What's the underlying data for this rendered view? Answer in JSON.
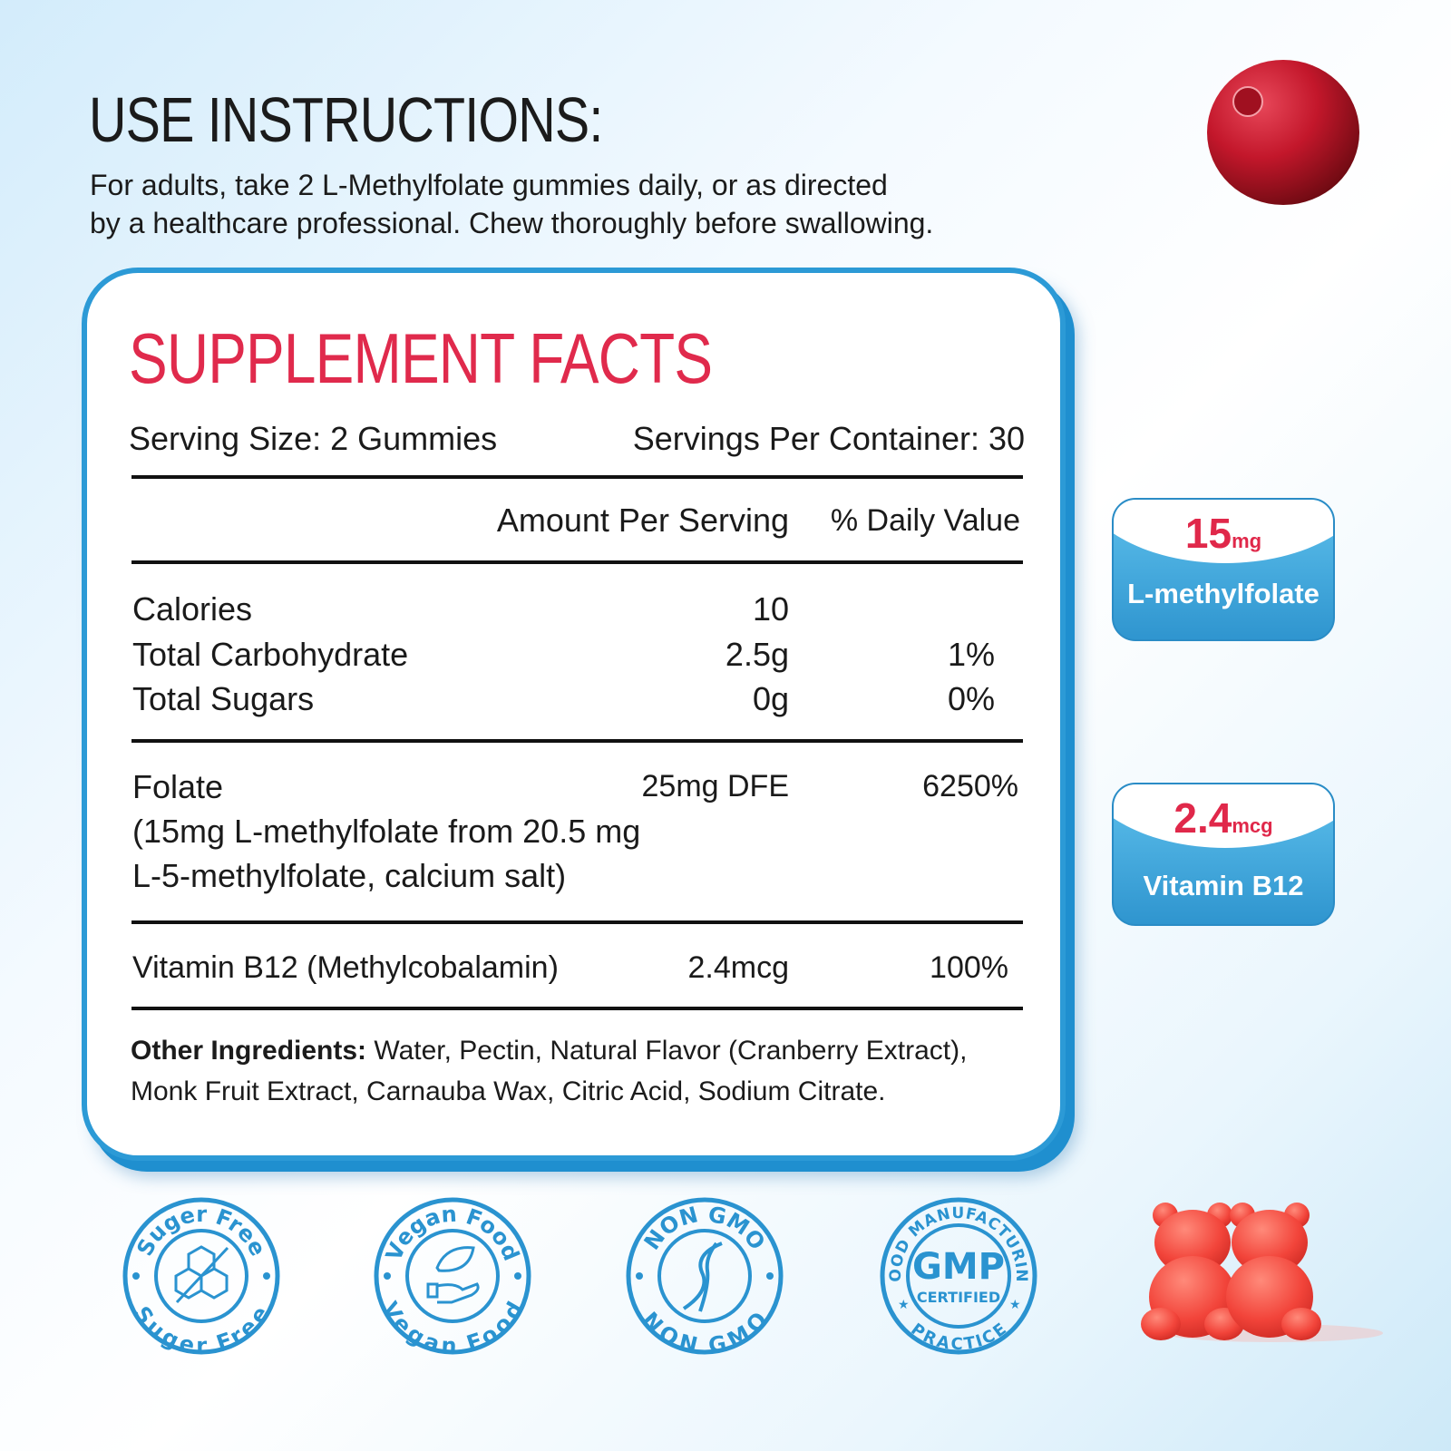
{
  "instructions": {
    "title": "USE INSTRUCTIONS:",
    "line1": "For adults, take 2 L-Methylfolate gummies daily, or as directed",
    "line2": "by a healthcare professional. Chew thoroughly before swallowing."
  },
  "facts": {
    "title": "SUPPLEMENT FACTS",
    "serving_size": "Serving Size:  2 Gummies",
    "servings_per_container": "Servings Per Container: 30",
    "header_amount": "Amount Per Serving",
    "header_dv": "% Daily Value",
    "rows": [
      {
        "name": "Calories",
        "amount": "10",
        "dv": ""
      },
      {
        "name": "Total Carbohydrate",
        "amount": "2.5g",
        "dv": "1%"
      },
      {
        "name": "Total Sugars",
        "amount": "0g",
        "dv": "0%"
      }
    ],
    "folate": {
      "name": "Folate",
      "detail1": "(15mg L-methylfolate from 20.5 mg",
      "detail2": "L-5-methylfolate, calcium salt)",
      "amount": "25mg DFE",
      "dv": "6250%"
    },
    "b12": {
      "name": "Vitamin B12 (Methylcobalamin)",
      "amount": "2.4mcg",
      "dv": "100%"
    },
    "other_label": "Other Ingredients:",
    "other_text1": " Water, Pectin, Natural Flavor (Cranberry Extract),",
    "other_text2": "Monk Fruit Extract, Carnauba Wax, Citric Acid, Sodium Citrate."
  },
  "badges": [
    {
      "value": "15",
      "unit": "mg",
      "label": "L-methylfolate"
    },
    {
      "value": "2.4",
      "unit": "mcg",
      "label": "Vitamin B12"
    }
  ],
  "seals": [
    {
      "top": "Suger Free",
      "bottom": "Suger Free",
      "icon": "sugar-cubes-crossed-icon"
    },
    {
      "top": "Vegan Food",
      "bottom": "Vegan Food",
      "icon": "leaf-hand-icon"
    },
    {
      "top": "NON GMO",
      "bottom": "NON GMO",
      "icon": "dna-icon"
    },
    {
      "top": "GOOD MANUFACTURING",
      "bottom": "PRACTICE",
      "center": "GMP",
      "sub": "CERTIFIED",
      "icon": "gmp-icon"
    }
  ],
  "colors": {
    "accent_blue": "#2c9ad6",
    "red": "#e02a4c"
  }
}
